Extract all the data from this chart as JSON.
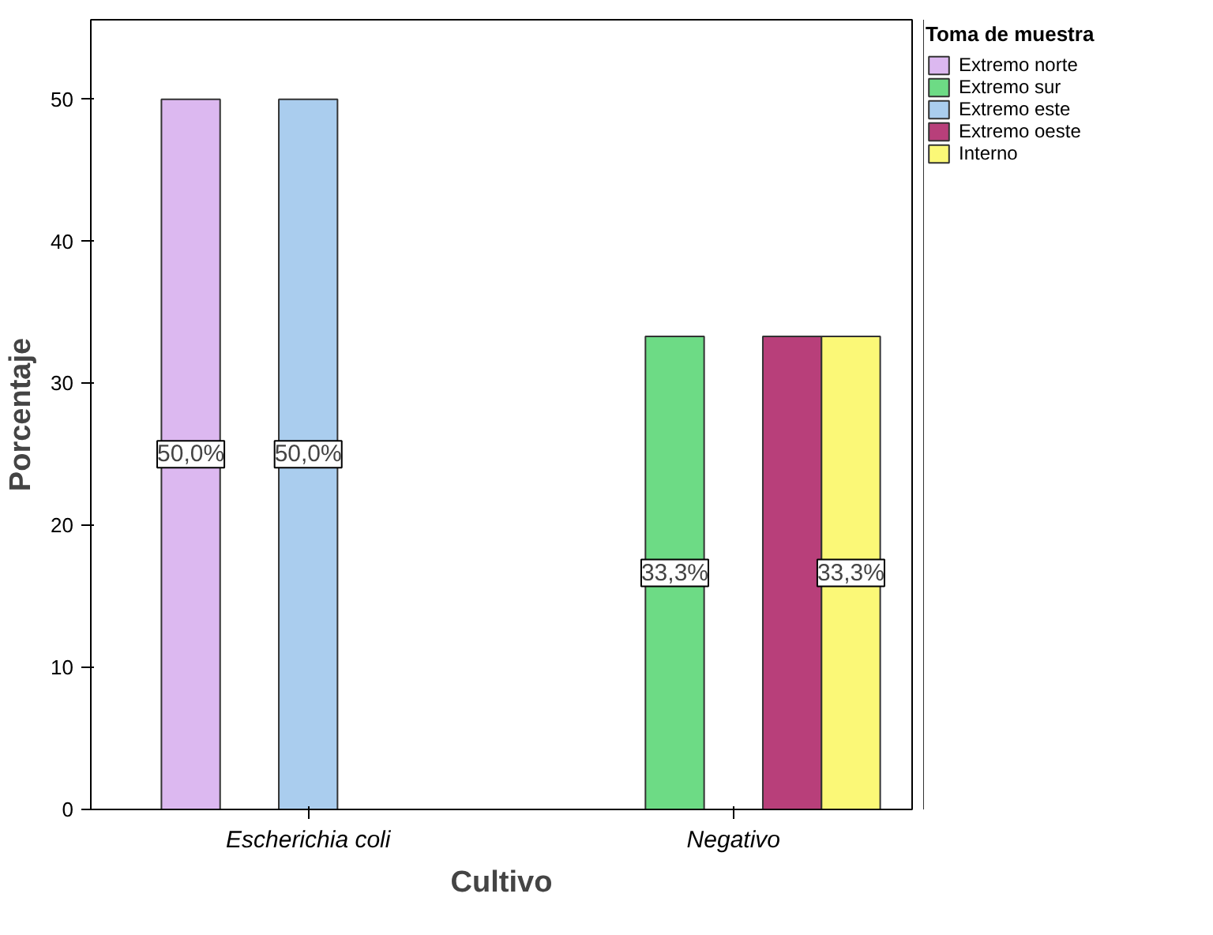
{
  "chart_data": {
    "type": "bar",
    "xlabel": "Cultivo",
    "ylabel": "Porcentaje",
    "legend_title": "Toma de muestra",
    "categories": [
      "Escherichia coli",
      "Negativo"
    ],
    "series": [
      {
        "name": "Extremo norte",
        "color": "#dcb8f0",
        "values": [
          50,
          null
        ],
        "value_labels": [
          "50,0%",
          null
        ]
      },
      {
        "name": "Extremo sur",
        "color": "#6ddb85",
        "values": [
          null,
          33.3
        ],
        "value_labels": [
          null,
          "33,3%"
        ]
      },
      {
        "name": "Extremo este",
        "color": "#aacdee",
        "values": [
          50,
          null
        ],
        "value_labels": [
          "50,0%",
          null
        ]
      },
      {
        "name": "Extremo oeste",
        "color": "#b83f7a",
        "values": [
          null,
          33.3
        ],
        "value_labels": [
          null,
          null
        ]
      },
      {
        "name": "Interno",
        "color": "#fbf877",
        "values": [
          null,
          33.3
        ],
        "value_labels": [
          null,
          "33,3%"
        ]
      }
    ],
    "ylim": [
      0,
      55.6
    ],
    "yticks": [
      0,
      10,
      20,
      30,
      40,
      50
    ],
    "grid": false,
    "legend": "right"
  }
}
